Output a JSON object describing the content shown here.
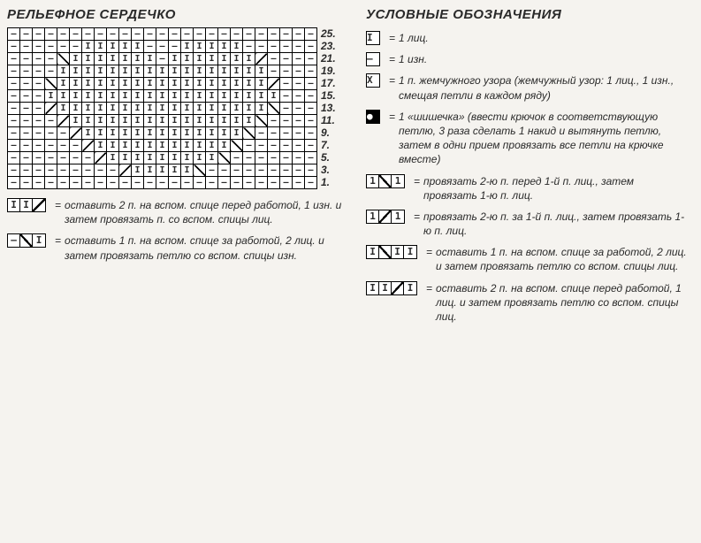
{
  "titles": {
    "chart": "РЕЛЬЕФНОЕ СЕРДЕЧКО",
    "legend": "УСЛОВНЫЕ ОБОЗНАЧЕНИЯ"
  },
  "row_numbers": [
    "25.",
    "23.",
    "21.",
    "19.",
    "17.",
    "15.",
    "13.",
    "11.",
    "9.",
    "7.",
    "5.",
    "3.",
    "1."
  ],
  "grid_columns": 25,
  "grid_rows": 13,
  "chart_rows": [
    "ppppppppppppppppppppppppp",
    "ppppppkkkkkpppkkkkkpppppp",
    "ppppLkkkkkkkpkkkkkkkRpppp",
    "ppppkkkkkkkkkkkkkkkkkpppp",
    "pppLkkkkkkkkkkkkkkkkkRppp",
    "pppkkkkkkkkkkkkkkkkkkkppp",
    "pppRkkkkkkkkkkkkkkkkkLppp",
    "ppppRkkkkkkkkkkkkkkkLpppp",
    "pppppRkkkkkkkkkkkkkLppppp",
    "ppppppRkkkkkkkkkkkLpppppp",
    "pppppppRkkkkkkkkkLppppppp",
    "pppppppppRkkkkkLppppppppp",
    "ppppppppppppppppppppppppp"
  ],
  "left_legend": [
    {
      "sym_cells": [
        "I",
        "I",
        "\\"
      ],
      "text": "оставить 2 п. на вспом. спице пе­ред работой, 1 изн. и затем про­вязать п. со вспом. спицы лиц."
    },
    {
      "sym_cells": [
        "–",
        "/",
        "I"
      ],
      "text": "оставить 1 п. на вспом. спице за работой, 2 лиц. и затем провя­зать петлю со вспом. спицы изн."
    }
  ],
  "right_legend": [
    {
      "sym_cells": [
        "I"
      ],
      "kind": "single",
      "text": "1 лиц."
    },
    {
      "sym_cells": [
        "–"
      ],
      "kind": "single",
      "text": "1 изн."
    },
    {
      "sym_cells": [
        "X"
      ],
      "kind": "single",
      "text": "1 п. жемчужного узора (жем­чужный узор: 1 лиц., 1 изн., смещая петли в каждом ряду)"
    },
    {
      "sym_cells": [
        "●"
      ],
      "kind": "single-filled",
      "text": "1 «шишечка» (ввести крючок в соответствующую петлю, 3 раза сделать 1 накид и вытянуть пет­лю, затем в одни прием провязать все петли на крючке вместе)"
    },
    {
      "sym_cells": [
        "1",
        "/",
        "1"
      ],
      "kind": "cross-l",
      "text": "провязать 2-ю п. перед 1-й п. лиц., затем провязать 1-ю п. лиц."
    },
    {
      "sym_cells": [
        "1",
        "\\",
        "1"
      ],
      "kind": "cross-r",
      "text": "провязать 2-ю п. за 1-й п. лиц., затем провязать 1-ю п. лиц."
    },
    {
      "sym_cells": [
        "I",
        "/",
        "I",
        "I"
      ],
      "kind": "quad",
      "text": "оставить 1 п. на вспом. спице за работой, 2 лиц. и затем провя­зать петлю со вспом. спицы лиц."
    },
    {
      "sym_cells": [
        "I",
        "I",
        "\\",
        "I"
      ],
      "kind": "quad",
      "text": "оставить 2 п. на вспом. спице пе­ред работой, 1 лиц. и затем провя­зать петлю со вспом. спицы лиц."
    }
  ],
  "equals": "="
}
